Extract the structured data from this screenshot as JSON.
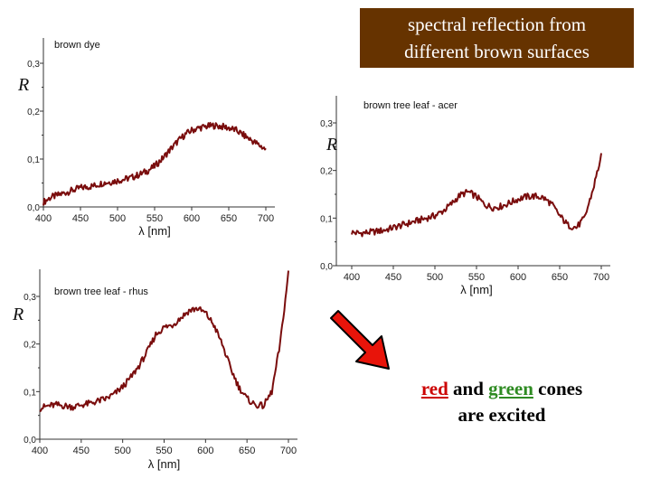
{
  "header": {
    "title_line1": "spectral reflection from",
    "title_line2": "different brown surfaces"
  },
  "note": {
    "red": "red",
    "and": " and ",
    "green": "green",
    "cones": " cones",
    "line2": "are excited"
  },
  "colors": {
    "title_box": "#663300",
    "curve": "#7a0d0d",
    "red_text": "#cc0000",
    "green_text": "#2e8b22",
    "arrow": "#e8140a"
  },
  "chart_data": [
    {
      "type": "line",
      "title": "brown dye",
      "xlabel": "λ [nm]",
      "ylabel": "R",
      "xlim": [
        400,
        700
      ],
      "ylim": [
        0.0,
        0.3
      ],
      "x_ticks": [
        "400",
        "450",
        "500",
        "550",
        "600",
        "650",
        "700"
      ],
      "y_ticks": [
        "0,0",
        "0,1",
        "0,2",
        "0,3"
      ],
      "series": [
        {
          "x": [
            400,
            410,
            420,
            430,
            440,
            450,
            460,
            470,
            480,
            490,
            500,
            510,
            520,
            530,
            540,
            550,
            560,
            570,
            580,
            590,
            600,
            610,
            620,
            630,
            640,
            650,
            660,
            670,
            680,
            690,
            700
          ],
          "y": [
            0.01,
            0.02,
            0.025,
            0.03,
            0.035,
            0.04,
            0.042,
            0.045,
            0.05,
            0.052,
            0.055,
            0.058,
            0.062,
            0.068,
            0.075,
            0.085,
            0.1,
            0.118,
            0.135,
            0.15,
            0.16,
            0.165,
            0.168,
            0.17,
            0.168,
            0.165,
            0.16,
            0.15,
            0.14,
            0.13,
            0.12
          ]
        }
      ]
    },
    {
      "type": "line",
      "title": "brown tree leaf - acer",
      "xlabel": "λ [nm]",
      "ylabel": "R",
      "xlim": [
        400,
        700
      ],
      "ylim": [
        0.0,
        0.3
      ],
      "x_ticks": [
        "400",
        "450",
        "500",
        "550",
        "600",
        "650",
        "700"
      ],
      "y_ticks": [
        "0,0",
        "0,1",
        "0,2",
        "0,3"
      ],
      "series": [
        {
          "x": [
            400,
            410,
            420,
            430,
            440,
            450,
            460,
            470,
            480,
            490,
            500,
            510,
            520,
            530,
            540,
            550,
            560,
            570,
            580,
            590,
            600,
            610,
            620,
            630,
            640,
            650,
            660,
            670,
            680,
            690,
            700
          ],
          "y": [
            0.07,
            0.068,
            0.07,
            0.072,
            0.075,
            0.08,
            0.085,
            0.09,
            0.095,
            0.1,
            0.105,
            0.115,
            0.13,
            0.148,
            0.155,
            0.145,
            0.128,
            0.122,
            0.125,
            0.132,
            0.14,
            0.145,
            0.146,
            0.143,
            0.13,
            0.105,
            0.085,
            0.08,
            0.1,
            0.16,
            0.23
          ]
        }
      ]
    },
    {
      "type": "line",
      "title": "brown tree leaf - rhus",
      "xlabel": "λ [nm]",
      "ylabel": "R",
      "xlim": [
        400,
        700
      ],
      "ylim": [
        0.0,
        0.3
      ],
      "x_ticks": [
        "400",
        "450",
        "500",
        "550",
        "600",
        "650",
        "700"
      ],
      "y_ticks": [
        "0,0",
        "0,1",
        "0,2",
        "0,3"
      ],
      "series": [
        {
          "x": [
            400,
            410,
            420,
            430,
            440,
            450,
            460,
            470,
            480,
            490,
            500,
            510,
            520,
            530,
            540,
            550,
            560,
            570,
            580,
            590,
            600,
            610,
            620,
            630,
            640,
            650,
            660,
            670,
            680,
            690,
            700
          ],
          "y": [
            0.065,
            0.07,
            0.072,
            0.07,
            0.068,
            0.072,
            0.075,
            0.08,
            0.085,
            0.095,
            0.11,
            0.13,
            0.155,
            0.185,
            0.22,
            0.235,
            0.24,
            0.255,
            0.27,
            0.275,
            0.265,
            0.24,
            0.2,
            0.15,
            0.11,
            0.085,
            0.072,
            0.07,
            0.1,
            0.2,
            0.35
          ]
        }
      ]
    }
  ]
}
